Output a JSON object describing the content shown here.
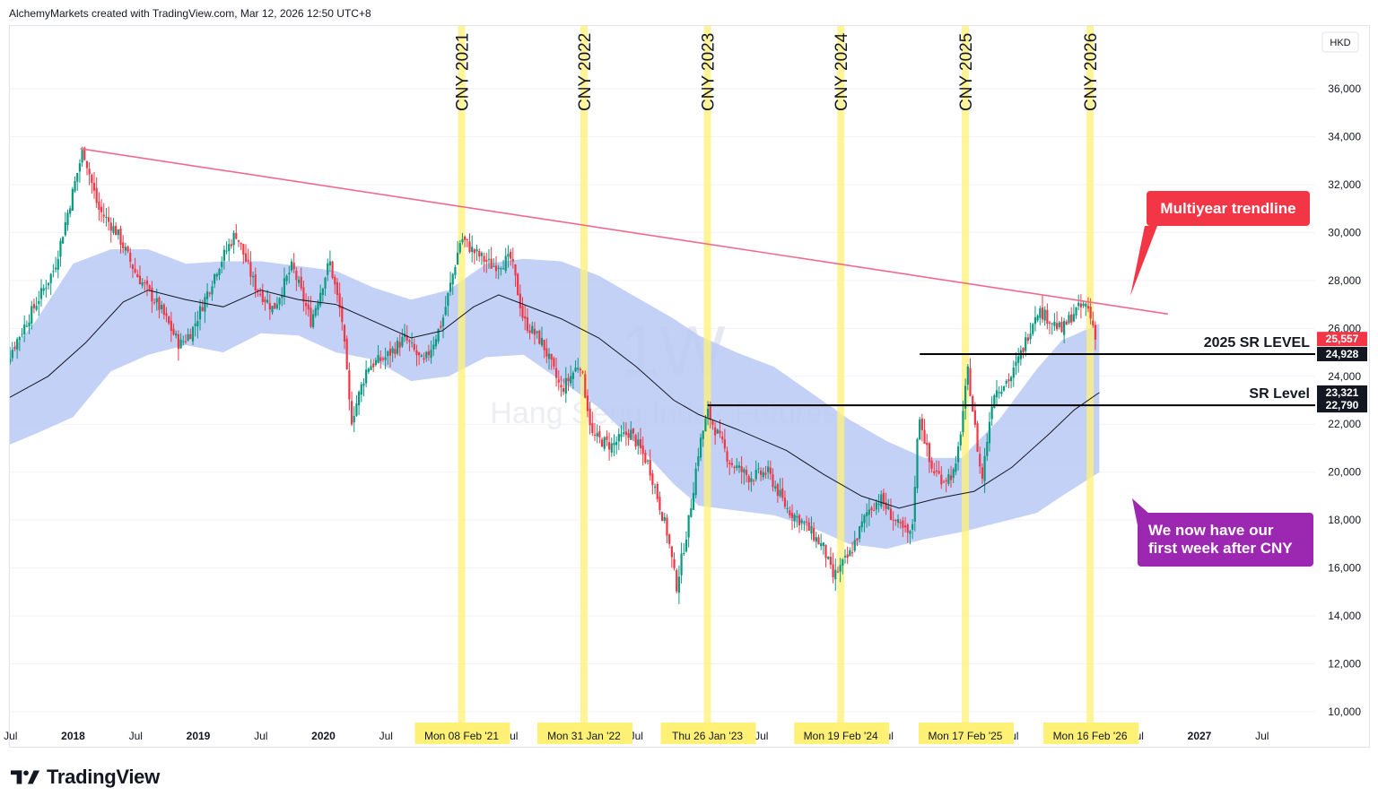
{
  "header": {
    "attribution": "AlchemyMarkets created with TradingView.com, Mar 12, 2026 12:50 UTC+8"
  },
  "footer": {
    "brand": "TradingView"
  },
  "watermark": {
    "interval": "1W",
    "symbol": "Hang Seng Index Futures"
  },
  "colors": {
    "up": "#089981",
    "down": "#f23645",
    "band": "#b9c9f5",
    "trend": "#f06a8e",
    "cny_band": "#fff176",
    "annotation_red": "#f23645",
    "annotation_purple": "#9c27b0"
  },
  "chart_data": {
    "type": "candlestick",
    "title": "",
    "currency": "HKD",
    "x_axis": {
      "ticks": [
        "Jul",
        "2018",
        "Jul",
        "2019",
        "Jul",
        "2020",
        "Jul",
        "Jul",
        "Jul",
        "Jul",
        "Jul",
        "Jul",
        "Jul",
        "2027",
        "Jul"
      ],
      "range": [
        "2017-05",
        "2027-11"
      ]
    },
    "y_axis": {
      "ticks": [
        "10,000",
        "12,000",
        "14,000",
        "16,000",
        "18,000",
        "20,000",
        "22,000",
        "24,000",
        "26,000",
        "28,000",
        "30,000",
        "32,000",
        "34,000",
        "36,000"
      ],
      "range": [
        9400,
        37400
      ]
    },
    "cny_markers": [
      {
        "label": "CNY 2021",
        "date_label": "Mon 08 Feb '21",
        "date": "2021-02-08"
      },
      {
        "label": "CNY 2022",
        "date_label": "Mon 31 Jan '22",
        "date": "2022-01-31"
      },
      {
        "label": "CNY 2023",
        "date_label": "Thu 26 Jan '23",
        "date": "2023-01-26"
      },
      {
        "label": "CNY 2024",
        "date_label": "Mon 19 Feb '24",
        "date": "2024-02-19"
      },
      {
        "label": "CNY 2025",
        "date_label": "Mon 17 Feb '25",
        "date": "2025-02-17"
      },
      {
        "label": "CNY 2026",
        "date_label": "Mon 16 Feb '26",
        "date": "2026-02-16"
      }
    ],
    "price_labels": [
      {
        "value": "25,557",
        "kind": "last"
      },
      {
        "value": "24,928",
        "kind": "level"
      },
      {
        "value": "23,321",
        "kind": "ma"
      },
      {
        "value": "22,790",
        "kind": "level"
      }
    ],
    "levels": [
      {
        "name": "2025 SR LEVEL",
        "price": 24928,
        "from": "2024-10-07"
      },
      {
        "name": "SR Level",
        "price": 22790,
        "from": "2023-01-26"
      }
    ],
    "trendline": {
      "from": {
        "date": "2018-01-22",
        "price": 33500
      },
      "to": {
        "date": "2026-10-01",
        "price": 26600
      }
    },
    "ma_line": [
      [
        2017.38,
        22800
      ],
      [
        2017.8,
        24000
      ],
      [
        2018.1,
        25400
      ],
      [
        2018.4,
        27100
      ],
      [
        2018.6,
        27600
      ],
      [
        2018.9,
        27200
      ],
      [
        2019.2,
        26900
      ],
      [
        2019.5,
        27600
      ],
      [
        2019.8,
        27200
      ],
      [
        2020.1,
        27000
      ],
      [
        2020.4,
        26300
      ],
      [
        2020.7,
        25600
      ],
      [
        2020.95,
        25900
      ],
      [
        2021.2,
        26900
      ],
      [
        2021.4,
        27400
      ],
      [
        2021.6,
        27000
      ],
      [
        2021.9,
        26400
      ],
      [
        2022.2,
        25600
      ],
      [
        2022.5,
        24400
      ],
      [
        2022.8,
        23000
      ],
      [
        2023.0,
        22400
      ],
      [
        2023.3,
        21800
      ],
      [
        2023.7,
        20900
      ],
      [
        2024.0,
        19900
      ],
      [
        2024.3,
        19000
      ],
      [
        2024.6,
        18500
      ],
      [
        2024.9,
        18900
      ],
      [
        2025.2,
        19200
      ],
      [
        2025.5,
        20200
      ],
      [
        2025.8,
        21600
      ],
      [
        2026.0,
        22600
      ],
      [
        2026.2,
        23321
      ]
    ],
    "band_upper": [
      [
        2017.38,
        24300
      ],
      [
        2017.7,
        26300
      ],
      [
        2018.0,
        28700
      ],
      [
        2018.3,
        29300
      ],
      [
        2018.6,
        29300
      ],
      [
        2018.9,
        28700
      ],
      [
        2019.2,
        28800
      ],
      [
        2019.5,
        28800
      ],
      [
        2019.8,
        28600
      ],
      [
        2020.1,
        28400
      ],
      [
        2020.4,
        27700
      ],
      [
        2020.7,
        27200
      ],
      [
        2021.0,
        27600
      ],
      [
        2021.3,
        28700
      ],
      [
        2021.6,
        28900
      ],
      [
        2021.9,
        28800
      ],
      [
        2022.2,
        28200
      ],
      [
        2022.5,
        27300
      ],
      [
        2022.8,
        26400
      ],
      [
        2023.0,
        25700
      ],
      [
        2023.3,
        25000
      ],
      [
        2023.6,
        24400
      ],
      [
        2023.9,
        23300
      ],
      [
        2024.2,
        22200
      ],
      [
        2024.5,
        21300
      ],
      [
        2024.8,
        20600
      ],
      [
        2025.1,
        20600
      ],
      [
        2025.4,
        22200
      ],
      [
        2025.7,
        24300
      ],
      [
        2025.9,
        25500
      ],
      [
        2026.2,
        26200
      ]
    ],
    "band_lower": [
      [
        2017.38,
        20900
      ],
      [
        2017.7,
        21600
      ],
      [
        2018.0,
        22300
      ],
      [
        2018.3,
        24200
      ],
      [
        2018.6,
        24900
      ],
      [
        2018.9,
        25300
      ],
      [
        2019.2,
        25000
      ],
      [
        2019.5,
        25800
      ],
      [
        2019.8,
        25700
      ],
      [
        2020.1,
        25000
      ],
      [
        2020.4,
        24700
      ],
      [
        2020.7,
        23800
      ],
      [
        2021.0,
        24000
      ],
      [
        2021.3,
        24800
      ],
      [
        2021.6,
        24900
      ],
      [
        2021.9,
        23800
      ],
      [
        2022.2,
        22700
      ],
      [
        2022.5,
        21200
      ],
      [
        2022.8,
        19500
      ],
      [
        2023.0,
        18600
      ],
      [
        2023.3,
        18400
      ],
      [
        2023.6,
        18200
      ],
      [
        2023.9,
        17700
      ],
      [
        2024.2,
        17000
      ],
      [
        2024.5,
        16800
      ],
      [
        2024.8,
        17200
      ],
      [
        2025.1,
        17500
      ],
      [
        2025.4,
        17900
      ],
      [
        2025.7,
        18300
      ],
      [
        2025.9,
        19000
      ],
      [
        2026.2,
        20000
      ]
    ],
    "price_path": [
      [
        2017.38,
        23800
      ],
      [
        2017.6,
        26000
      ],
      [
        2017.85,
        28500
      ],
      [
        2018.08,
        33500
      ],
      [
        2018.2,
        31000
      ],
      [
        2018.35,
        30000
      ],
      [
        2018.5,
        28300
      ],
      [
        2018.7,
        26800
      ],
      [
        2018.85,
        25300
      ],
      [
        2018.95,
        25900
      ],
      [
        2019.15,
        28500
      ],
      [
        2019.3,
        30000
      ],
      [
        2019.45,
        27800
      ],
      [
        2019.6,
        26800
      ],
      [
        2019.75,
        28600
      ],
      [
        2019.9,
        26300
      ],
      [
        2020.05,
        28800
      ],
      [
        2020.15,
        26300
      ],
      [
        2020.22,
        22100
      ],
      [
        2020.35,
        24400
      ],
      [
        2020.5,
        24800
      ],
      [
        2020.65,
        25600
      ],
      [
        2020.8,
        24500
      ],
      [
        2020.95,
        26300
      ],
      [
        2021.1,
        29800
      ],
      [
        2021.2,
        29200
      ],
      [
        2021.35,
        28600
      ],
      [
        2021.5,
        28900
      ],
      [
        2021.6,
        26300
      ],
      [
        2021.75,
        25400
      ],
      [
        2021.9,
        23400
      ],
      [
        2022.05,
        24600
      ],
      [
        2022.15,
        21500
      ],
      [
        2022.3,
        21100
      ],
      [
        2022.45,
        21700
      ],
      [
        2022.6,
        20300
      ],
      [
        2022.75,
        17400
      ],
      [
        2022.82,
        15200
      ],
      [
        2022.92,
        18000
      ],
      [
        2023.0,
        21000
      ],
      [
        2023.07,
        22500
      ],
      [
        2023.25,
        20400
      ],
      [
        2023.4,
        19800
      ],
      [
        2023.55,
        20000
      ],
      [
        2023.7,
        18500
      ],
      [
        2023.85,
        17800
      ],
      [
        2024.0,
        16800
      ],
      [
        2024.07,
        15600
      ],
      [
        2024.2,
        16500
      ],
      [
        2024.35,
        18400
      ],
      [
        2024.45,
        18900
      ],
      [
        2024.6,
        17700
      ],
      [
        2024.7,
        17300
      ],
      [
        2024.76,
        22500
      ],
      [
        2024.85,
        20200
      ],
      [
        2024.95,
        19700
      ],
      [
        2025.05,
        20000
      ],
      [
        2025.15,
        24200
      ],
      [
        2025.26,
        19600
      ],
      [
        2025.35,
        23300
      ],
      [
        2025.5,
        24000
      ],
      [
        2025.6,
        25300
      ],
      [
        2025.7,
        26800
      ],
      [
        2025.8,
        26400
      ],
      [
        2025.9,
        25900
      ],
      [
        2026.0,
        26700
      ],
      [
        2026.1,
        27000
      ],
      [
        2026.18,
        25557
      ]
    ]
  },
  "annotations": {
    "trend_callout": "Multiyear trendline",
    "cny_callout_line1": "We now have our",
    "cny_callout_line2": "first week after CNY"
  }
}
